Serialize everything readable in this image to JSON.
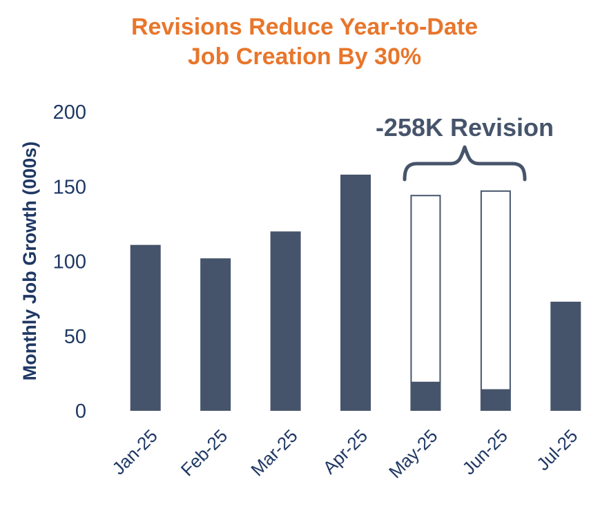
{
  "colors": {
    "title": "#E8762B",
    "bar": "#46546B",
    "axis_text": "#1F3864",
    "annotation": "#46546B"
  },
  "chart_data": {
    "type": "bar",
    "title": [
      "Revisions Reduce Year-to-Date",
      "Job Creation By 30%"
    ],
    "ylabel": "Monthly Job Growth (000s)",
    "xlabel": "",
    "ylim": [
      0,
      200
    ],
    "yticks": [
      "0",
      "50",
      "100",
      "150",
      "200"
    ],
    "categories": [
      "Jan-25",
      "Feb-25",
      "Mar-25",
      "Apr-25",
      "May-25",
      "Jun-25",
      "Jul-25"
    ],
    "series": [
      {
        "values": [
          111,
          102,
          120,
          158,
          19,
          14,
          73
        ]
      },
      {
        "values": [
          0,
          0,
          0,
          0,
          125,
          133,
          0
        ]
      }
    ],
    "annotation": "-258K Revision",
    "grid": false,
    "legend": "none"
  }
}
